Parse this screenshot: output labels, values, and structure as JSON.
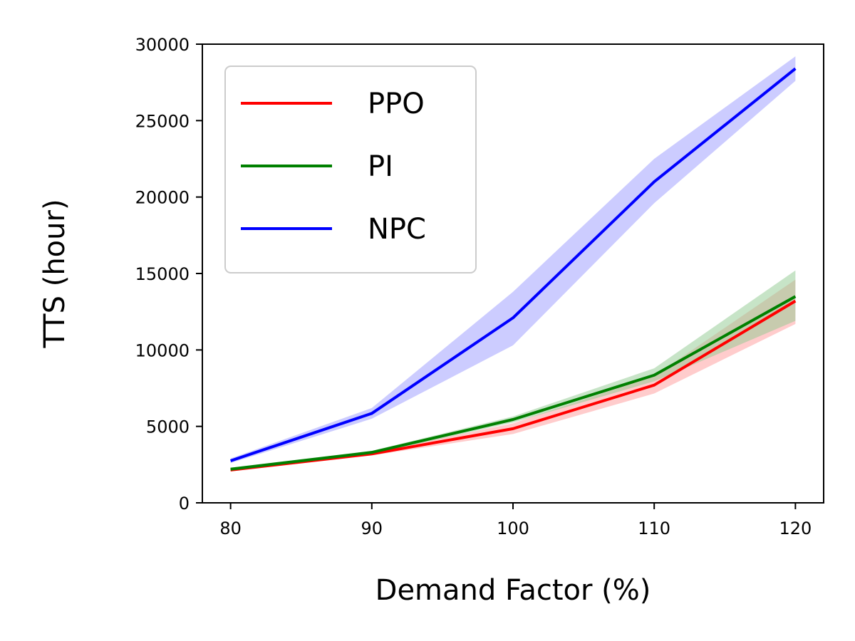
{
  "chart_data": {
    "type": "line",
    "title": "",
    "xlabel": "Demand Factor (%)",
    "ylabel": "TTS (hour)",
    "x": [
      80,
      90,
      100,
      110,
      120
    ],
    "xlim": [
      78,
      122
    ],
    "ylim": [
      0,
      30000
    ],
    "xticks": [
      80,
      90,
      100,
      110,
      120
    ],
    "yticks": [
      0,
      5000,
      10000,
      15000,
      20000,
      25000,
      30000
    ],
    "xtick_labels": [
      "80",
      "90",
      "100",
      "110",
      "120"
    ],
    "ytick_labels": [
      "0",
      "5000",
      "10000",
      "15000",
      "20000",
      "25000",
      "30000"
    ],
    "grid": false,
    "legend_position": "top-left",
    "series": [
      {
        "name": "PPO",
        "color": "#ff0000",
        "band_color": "#ff9999",
        "values": [
          2150,
          3200,
          4850,
          7700,
          13200
        ],
        "lower": [
          2050,
          3100,
          4500,
          7150,
          11700
        ],
        "upper": [
          2250,
          3300,
          5200,
          8300,
          14600
        ]
      },
      {
        "name": "PI",
        "color": "#008000",
        "band_color": "#8fc98f",
        "values": [
          2200,
          3300,
          5450,
          8350,
          13500
        ],
        "lower": [
          2100,
          3200,
          5250,
          7950,
          11900
        ],
        "upper": [
          2300,
          3400,
          5650,
          8800,
          15200
        ]
      },
      {
        "name": "NPC",
        "color": "#0000ff",
        "band_color": "#9999ff",
        "values": [
          2750,
          5850,
          12100,
          21000,
          28400
        ],
        "lower": [
          2600,
          5500,
          10300,
          19600,
          27600
        ],
        "upper": [
          2900,
          6200,
          13800,
          22500,
          29200
        ]
      }
    ]
  }
}
